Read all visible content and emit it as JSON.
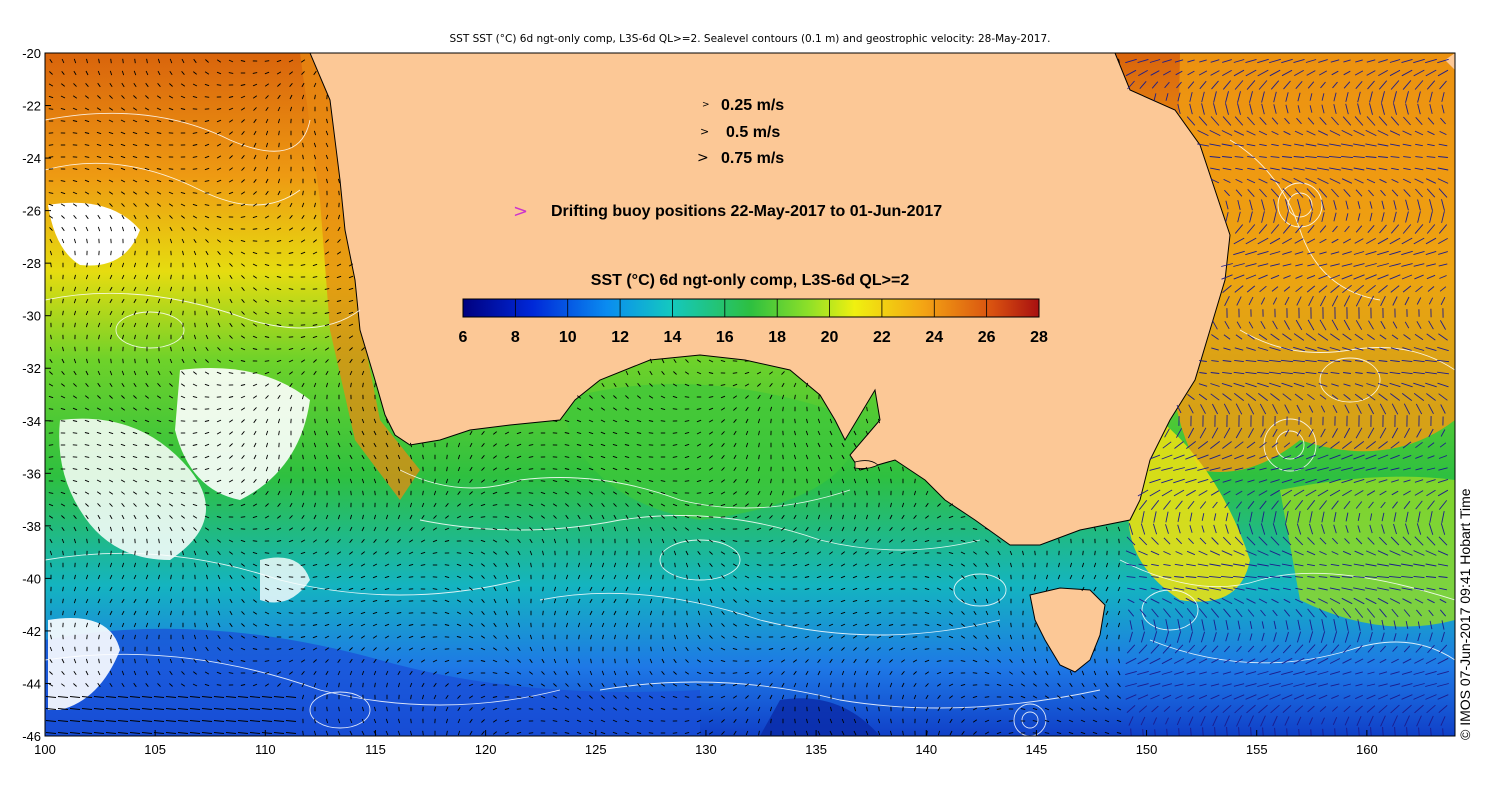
{
  "title": "SST SST (°C) 6d ngt-only comp, L3S-6d QL>=2. Sealevel contours (0.1 m) and geostrophic velocity: 28-May-2017.",
  "velocity_legend": [
    {
      "label": "0.25 m/s",
      "speed": 0.25
    },
    {
      "label": "0.5 m/s",
      "speed": 0.5
    },
    {
      "label": "0.75 m/s",
      "speed": 0.75
    }
  ],
  "buoy_legend": {
    "label": "Drifting buoy positions 22-May-2017 to 01-Jun-2017",
    "color": "#cc33cc"
  },
  "colorbar": {
    "title": "SST (°C) 6d ngt-only comp, L3S-6d QL>=2",
    "min": 6,
    "max": 28,
    "ticks": [
      "6",
      "8",
      "10",
      "12",
      "14",
      "16",
      "18",
      "20",
      "22",
      "24",
      "26",
      "28"
    ]
  },
  "axes": {
    "lon_range": [
      100,
      164
    ],
    "lat_range": [
      -46,
      -20
    ],
    "x_ticks": [
      "100",
      "105",
      "110",
      "115",
      "120",
      "125",
      "130",
      "135",
      "140",
      "145",
      "150",
      "155",
      "160"
    ],
    "y_ticks": [
      "-20",
      "-22",
      "-24",
      "-26",
      "-28",
      "-30",
      "-32",
      "-34",
      "-36",
      "-38",
      "-40",
      "-42",
      "-44",
      "-46"
    ]
  },
  "credit": "© IMOS 07-Jun-2017 09:41 Hobart Time",
  "colors": {
    "land": "#fcc896",
    "contour": "#ffffff",
    "arrow": "#000000",
    "arrow_east": "#1c1c8c"
  }
}
